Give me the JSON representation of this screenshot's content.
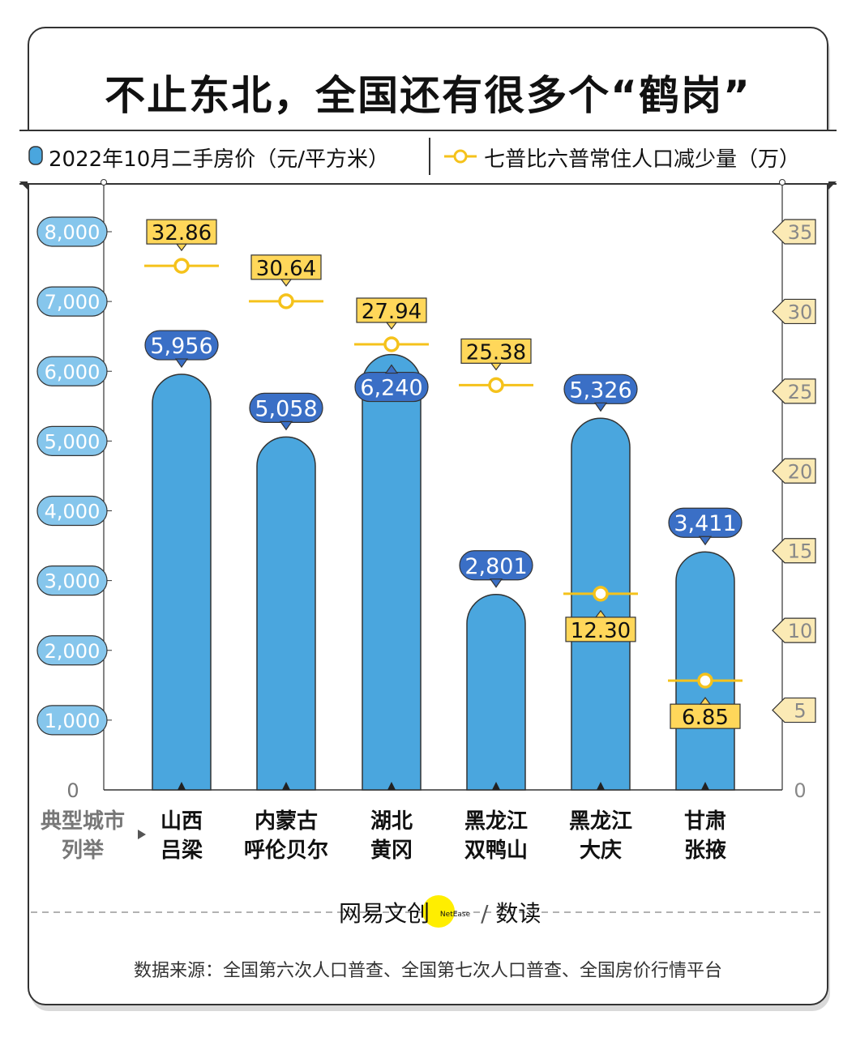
{
  "title": "不止东北，全国还有很多个“鹤岗”",
  "legend": {
    "bar_label": "2022年10月二手房价（元/平方米）",
    "line_label": "七普比六普常住人口减少量（万）"
  },
  "chart_data": {
    "type": "bar+line",
    "x_axis_label": "典型城市列举",
    "categories": [
      "山西\n吕梁",
      "内蒙古\n呼伦贝尔",
      "湖北\n黄冈",
      "黑龙江\n双鸭山",
      "黑龙江\n大庆",
      "甘肃\n张掖"
    ],
    "bar_series": {
      "name": "2022年10月二手房价（元/平方米）",
      "values": [
        5956,
        5058,
        6240,
        2801,
        5326,
        3411
      ],
      "labels": [
        "5,956",
        "5,058",
        "6,240",
        "2,801",
        "5,326",
        "3,411"
      ]
    },
    "line_series": {
      "name": "七普比六普常住人口减少量（万）",
      "values": [
        32.86,
        30.64,
        27.94,
        25.38,
        12.3,
        6.85
      ],
      "labels": [
        "32.86",
        "30.64",
        "27.94",
        "25.38",
        "12.30",
        "6.85"
      ]
    },
    "y_left": {
      "range": [
        0,
        8000
      ],
      "ticks": [
        "0",
        "1,000",
        "2,000",
        "3,000",
        "4,000",
        "5,000",
        "6,000",
        "7,000",
        "8,000"
      ]
    },
    "y_right": {
      "range": [
        0,
        35
      ],
      "ticks": [
        "0",
        "5",
        "10",
        "15",
        "20",
        "25",
        "30",
        "35"
      ]
    },
    "colors": {
      "bar": "#4aa6de",
      "bar_label": "#3a6fc6",
      "line": "#f5c21b",
      "line_label": "#ffd75a",
      "left_tick": "#86c6ec",
      "right_tick": "#fbeab5"
    }
  },
  "footer": {
    "logo_text": "网易文创",
    "logo_badge": "NetEase",
    "logo_sub": "数读",
    "source": "数据来源：全国第六次人口普查、全国第七次人口普查、全国房价行情平台"
  }
}
